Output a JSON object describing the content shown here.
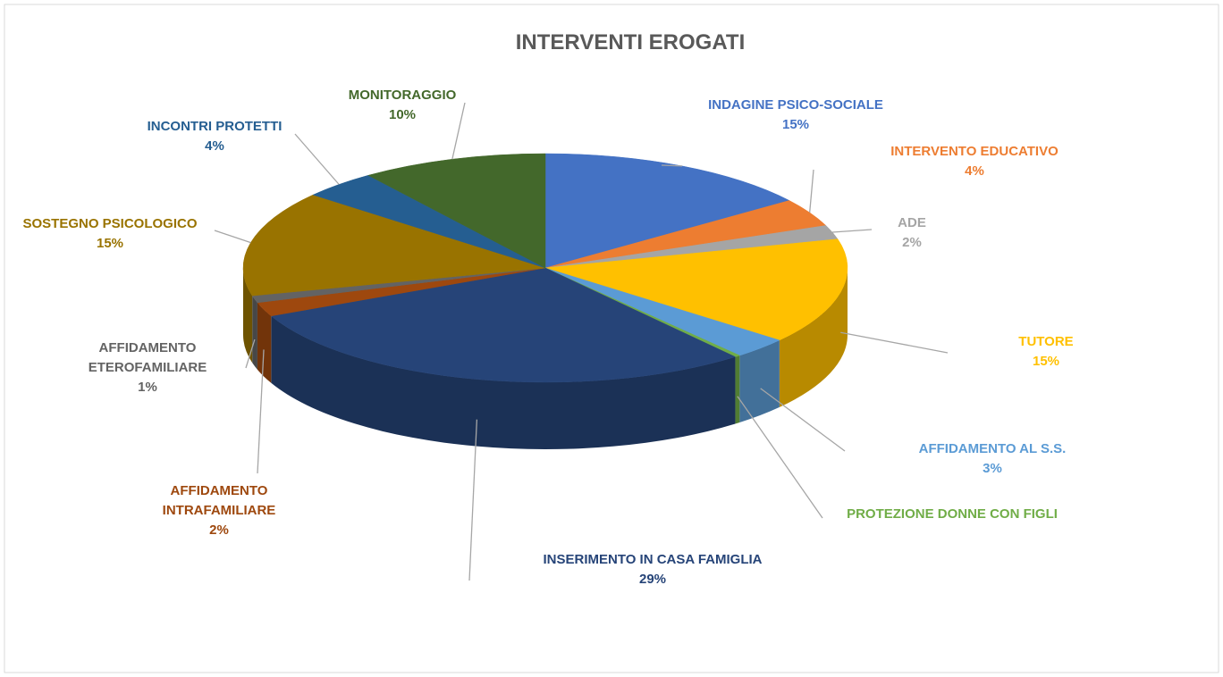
{
  "chart_data": {
    "type": "pie3d",
    "title": "INTERVENTI EROGATI",
    "categories": [
      "INDAGINE PSICO-SOCIALE",
      "INTERVENTO EDUCATIVO",
      "ADE",
      "TUTORE",
      "AFFIDAMENTO AL S.S.",
      "PROTEZIONE DONNE CON FIGLI",
      "INSERIMENTO IN CASA FAMIGLIA",
      "AFFIDAMENTO INTRAFAMILIARE",
      "AFFIDAMENTO ETEROFAMILIARE",
      "SOSTEGNO PSICOLOGICO",
      "INCONTRI PROTETTI",
      "MONITORAGGIO"
    ],
    "values": [
      15,
      4,
      2,
      15,
      3,
      0.3,
      29,
      2,
      1,
      15,
      4,
      10
    ],
    "value_labels": [
      "15%",
      "4%",
      "2%",
      "15%",
      "3%",
      null,
      "29%",
      "2%",
      "1%",
      "15%",
      "4%",
      "10%"
    ],
    "colors": [
      "#4472c4",
      "#ed7d31",
      "#a5a5a5",
      "#ffc000",
      "#5b9bd5",
      "#70ad47",
      "#264478",
      "#9e480e",
      "#636363",
      "#997300",
      "#255e91",
      "#43682b"
    ]
  }
}
